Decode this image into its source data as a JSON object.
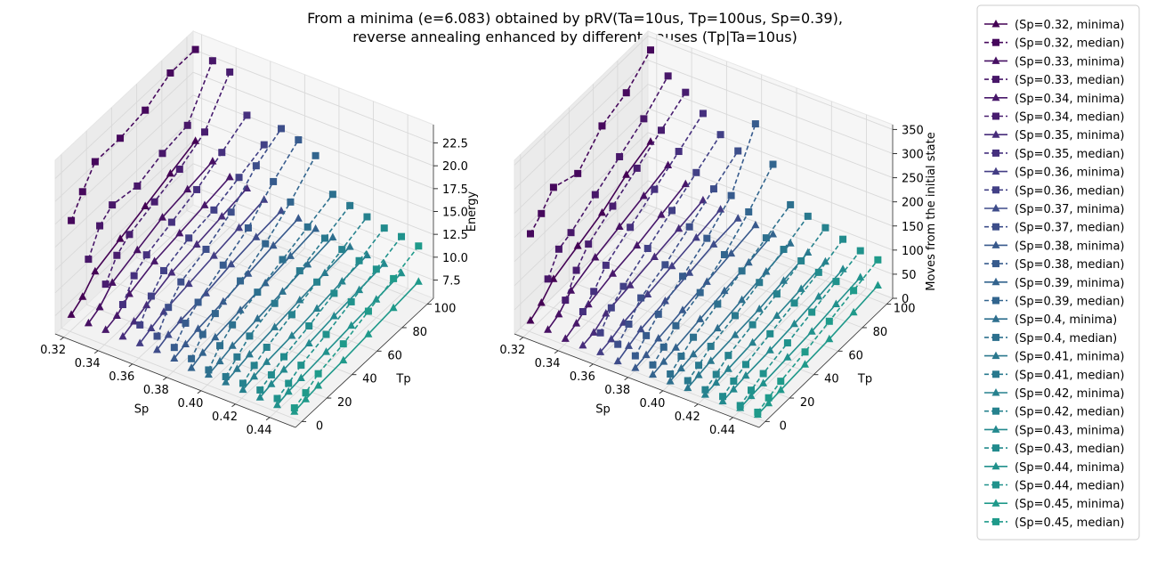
{
  "chart_data": {
    "type": "line3d",
    "title_line1": "From a minima (e=6.083) obtained by pRV(Ta=10us, Tp=100us, Sp=0.39),",
    "title_line2": "reverse annealing enhanced by different pauses (Tp|Ta=10us)",
    "colors": [
      "#440154",
      "#46085c",
      "#471063",
      "#481769",
      "#48186a",
      "#481d6f",
      "#472c7a",
      "#46307e",
      "#433d84",
      "#424086",
      "#3e4c8a",
      "#3d4e8a",
      "#38598c",
      "#375b8d",
      "#33638d",
      "#32658e",
      "#2e6f8e",
      "#2d708e",
      "#2a788e",
      "#29798e",
      "#26818e",
      "#26828e",
      "#23898e",
      "#228b8d",
      "#21918c",
      "#20928c",
      "#1f998a",
      "#1f9a8a",
      "#20a386",
      "#21a685",
      "#2ab07f",
      "#2eb37c",
      "#3dbc74",
      "#40bd72",
      "#50c46a",
      "#56c667",
      "#69cd5b",
      "#6ece58",
      "#84d44b",
      "#8bd646",
      "#a0da39",
      "#a8db34",
      "#bddf26",
      "#c5e021",
      "#dde318",
      "#e2e418",
      "#fde725",
      "#fde725"
    ],
    "sp_values": [
      0.32,
      0.33,
      0.34,
      0.35,
      0.36,
      0.37,
      0.38,
      0.39,
      0.4,
      0.41,
      0.42,
      0.43,
      0.44,
      0.45
    ],
    "tp_values": [
      1,
      10,
      20,
      40,
      60,
      80,
      100
    ],
    "legend": [
      "(Sp=0.32, minima)",
      "(Sp=0.32, median)",
      "(Sp=0.33, minima)",
      "(Sp=0.33, median)",
      "(Sp=0.34, minima)",
      "(Sp=0.34, median)",
      "(Sp=0.35, minima)",
      "(Sp=0.35, median)",
      "(Sp=0.36, minima)",
      "(Sp=0.36, median)",
      "(Sp=0.37, minima)",
      "(Sp=0.37, median)",
      "(Sp=0.38, minima)",
      "(Sp=0.38, median)",
      "(Sp=0.39, minima)",
      "(Sp=0.39, median)",
      "(Sp=0.4, minima)",
      "(Sp=0.4, median)",
      "(Sp=0.41, minima)",
      "(Sp=0.41, median)",
      "(Sp=0.42, minima)",
      "(Sp=0.42, median)",
      "(Sp=0.43, minima)",
      "(Sp=0.43, median)",
      "(Sp=0.44, minima)",
      "(Sp=0.44, median)",
      "(Sp=0.45, minima)",
      "(Sp=0.45, median)"
    ],
    "energy_plot": {
      "xlabel": "Sp",
      "ylabel": "Tp",
      "zlabel": "Energy",
      "xlim": [
        0.315,
        0.455
      ],
      "ylim": [
        -5,
        105
      ],
      "zlim": [
        5.5,
        24.5
      ],
      "xticks": [
        "0.32",
        "0.34",
        "0.36",
        "0.38",
        "0.40",
        "0.42",
        "0.44"
      ],
      "yticks": [
        "0",
        "20",
        "40",
        "60",
        "80",
        "100"
      ],
      "zticks": [
        "7.5",
        "10.0",
        "12.5",
        "15.0",
        "17.5",
        "20.0",
        "22.5"
      ],
      "minima": [
        [
          7.2,
          8.0,
          9.5,
          10.5,
          11.5,
          12.5,
          13.5
        ],
        [
          7.0,
          7.6,
          9.0,
          10.0,
          11.0,
          11.5,
          12.0
        ],
        [
          7.0,
          7.4,
          8.5,
          9.5,
          10.0,
          10.5,
          11.0
        ],
        [
          7.0,
          7.5,
          8.0,
          9.0,
          9.5,
          10.0,
          10.5
        ],
        [
          7.0,
          7.5,
          8.0,
          8.5,
          9.0,
          9.5,
          10.0
        ],
        [
          7.0,
          7.5,
          7.8,
          8.2,
          8.8,
          9.2,
          9.5
        ],
        [
          6.8,
          7.2,
          7.6,
          8.0,
          8.5,
          9.0,
          9.4
        ],
        [
          6.5,
          7.0,
          7.4,
          7.8,
          8.2,
          8.6,
          9.0
        ],
        [
          6.5,
          6.8,
          7.2,
          7.6,
          8.0,
          8.4,
          8.8
        ],
        [
          6.4,
          6.7,
          7.0,
          7.4,
          7.8,
          8.2,
          8.5
        ],
        [
          6.3,
          6.6,
          6.9,
          7.2,
          7.6,
          8.0,
          8.3
        ],
        [
          6.2,
          6.5,
          6.8,
          7.1,
          7.5,
          7.8,
          8.1
        ],
        [
          6.1,
          6.4,
          6.6,
          6.9,
          7.2,
          7.5,
          7.8
        ],
        [
          6.1,
          6.3,
          6.5,
          6.7,
          7.0,
          7.3,
          7.6
        ]
      ],
      "median": [
        [
          17.5,
          19.5,
          21.5,
          21.5,
          22.0,
          23.5,
          23.5
        ],
        [
          14.0,
          16.5,
          17.5,
          17.0,
          18.0,
          18.5,
          23.0
        ],
        [
          12.0,
          14.0,
          15.0,
          16.0,
          17.0,
          18.5,
          22.5
        ],
        [
          10.5,
          12.5,
          13.5,
          14.5,
          15.5,
          17.0,
          18.5
        ],
        [
          9.0,
          11.0,
          12.5,
          13.5,
          14.0,
          15.0,
          16.0
        ],
        [
          8.5,
          10.5,
          12.0,
          13.0,
          14.5,
          17.0,
          18.5
        ],
        [
          8.0,
          9.5,
          10.5,
          12.0,
          13.5,
          16.0,
          18.0
        ],
        [
          7.5,
          9.0,
          10.0,
          11.0,
          12.5,
          14.5,
          17.0
        ],
        [
          7.0,
          8.5,
          9.5,
          10.5,
          11.5,
          12.5,
          13.5
        ],
        [
          7.0,
          8.0,
          9.0,
          10.0,
          11.0,
          12.0,
          13.0
        ],
        [
          7.0,
          7.8,
          8.5,
          9.5,
          10.5,
          11.5,
          12.5
        ],
        [
          7.0,
          7.5,
          8.2,
          9.0,
          10.0,
          11.0,
          12.0
        ],
        [
          6.8,
          7.3,
          8.0,
          8.8,
          9.8,
          10.8,
          11.8
        ],
        [
          6.5,
          7.0,
          7.8,
          8.5,
          9.5,
          10.5,
          11.5
        ]
      ]
    },
    "moves_plot": {
      "xlabel": "Sp",
      "ylabel": "Tp",
      "zlabel": "Moves from the initial state",
      "xlim": [
        0.315,
        0.455
      ],
      "ylim": [
        -5,
        105
      ],
      "zlim": [
        0,
        360
      ],
      "xticks": [
        "0.32",
        "0.34",
        "0.36",
        "0.38",
        "0.40",
        "0.42",
        "0.44"
      ],
      "yticks": [
        "0",
        "20",
        "40",
        "60",
        "80",
        "100"
      ],
      "zticks": [
        "0",
        "50",
        "100",
        "150",
        "200",
        "250",
        "300",
        "350"
      ],
      "minima": [
        [
          20,
          35,
          60,
          80,
          100,
          130,
          150
        ],
        [
          15,
          25,
          50,
          70,
          85,
          100,
          115
        ],
        [
          10,
          20,
          35,
          50,
          60,
          75,
          90
        ],
        [
          10,
          15,
          30,
          40,
          50,
          60,
          70
        ],
        [
          10,
          15,
          25,
          35,
          45,
          55,
          65
        ],
        [
          5,
          15,
          25,
          35,
          45,
          55,
          60
        ],
        [
          5,
          10,
          20,
          30,
          40,
          50,
          60
        ],
        [
          5,
          10,
          15,
          25,
          35,
          45,
          55
        ],
        [
          5,
          10,
          15,
          20,
          30,
          40,
          50
        ],
        [
          5,
          10,
          15,
          20,
          25,
          35,
          45
        ],
        [
          5,
          8,
          12,
          18,
          25,
          32,
          40
        ],
        [
          5,
          8,
          12,
          16,
          22,
          30,
          38
        ],
        [
          5,
          8,
          10,
          15,
          20,
          28,
          35
        ],
        [
          5,
          7,
          10,
          14,
          18,
          25,
          32
        ]
      ],
      "median": [
        [
          200,
          220,
          250,
          230,
          280,
          300,
          340
        ],
        [
          120,
          160,
          170,
          200,
          230,
          260,
          300
        ],
        [
          90,
          130,
          160,
          190,
          220,
          250,
          280
        ],
        [
          80,
          100,
          130,
          160,
          190,
          220,
          250
        ],
        [
          50,
          80,
          100,
          130,
          160,
          190,
          220
        ],
        [
          40,
          60,
          90,
          110,
          140,
          170,
          200
        ],
        [
          30,
          50,
          70,
          100,
          130,
          170,
          270
        ],
        [
          25,
          40,
          60,
          80,
          110,
          150,
          200
        ],
        [
          20,
          35,
          50,
          70,
          90,
          110,
          130
        ],
        [
          20,
          30,
          45,
          60,
          80,
          100,
          120
        ],
        [
          15,
          25,
          40,
          55,
          70,
          90,
          110
        ],
        [
          15,
          25,
          35,
          50,
          65,
          80,
          100
        ],
        [
          10,
          20,
          30,
          45,
          60,
          75,
          90
        ],
        [
          10,
          18,
          28,
          40,
          55,
          70,
          85
        ]
      ]
    }
  }
}
